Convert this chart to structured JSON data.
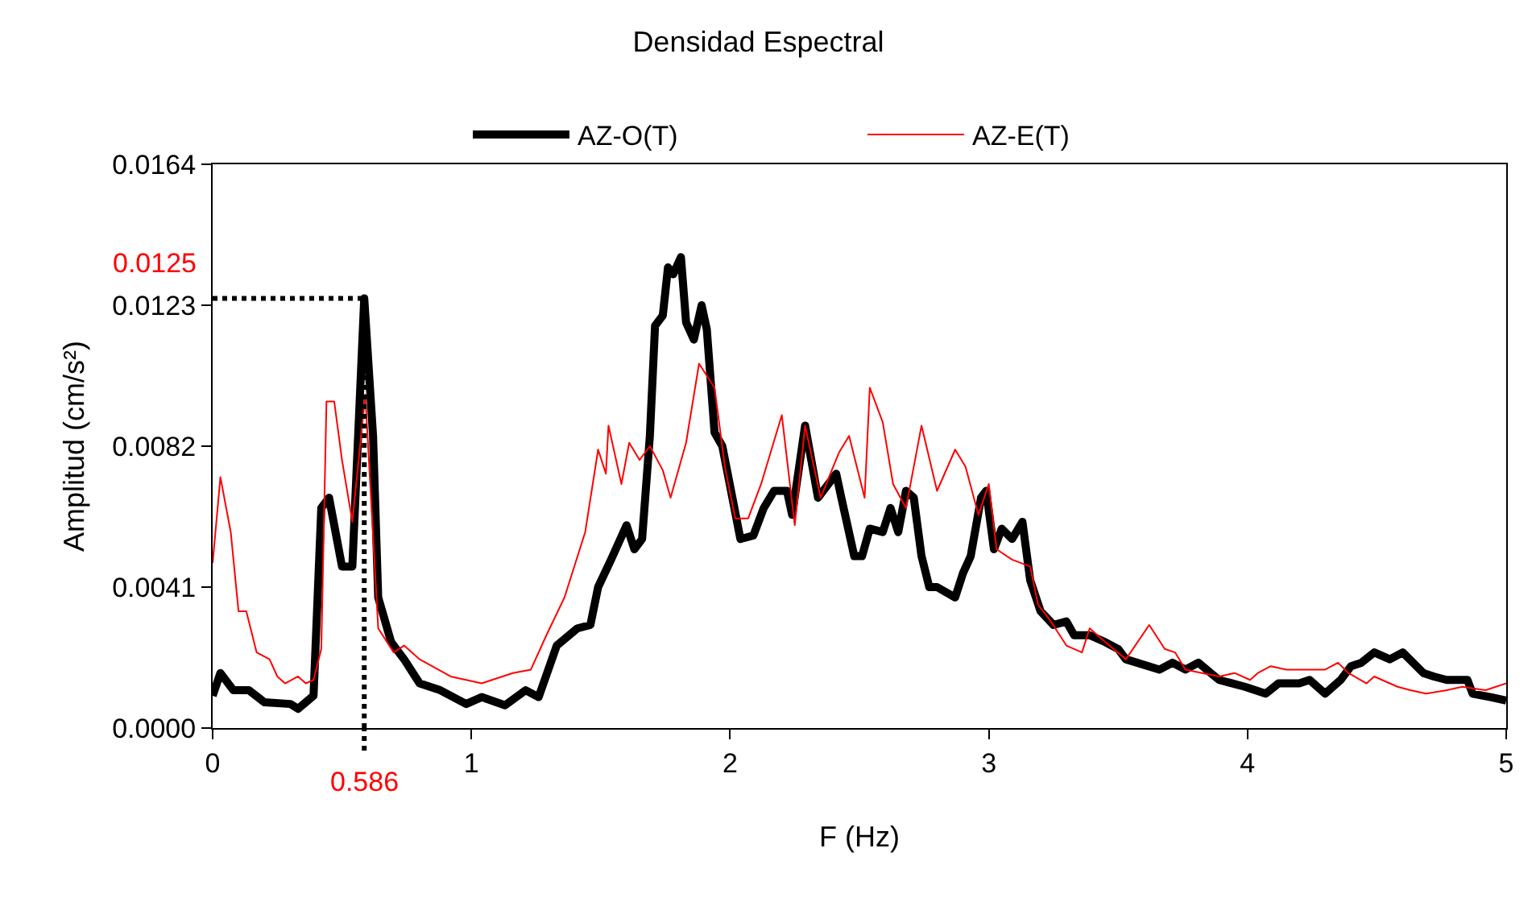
{
  "chart_data": {
    "type": "line",
    "title": "Densidad Espectral",
    "xlabel": "F (Hz)",
    "ylabel": "Amplitud (cm/s²)",
    "xlim": [
      0,
      5
    ],
    "xticks": [
      0,
      1,
      2,
      3,
      4,
      5
    ],
    "ylim": [
      0,
      0.0164
    ],
    "yticks": [
      {
        "value": 0,
        "label": "0.0000"
      },
      0.0041,
      0.0082,
      0.0123,
      0.0164
    ],
    "grid": false,
    "legend": "top",
    "marker": "none",
    "line_style": "solid",
    "ref_lines": [
      {
        "axis": "y",
        "value": 0.0125,
        "label": "0.0125",
        "color": "#000000",
        "line_style": "dotted"
      },
      {
        "axis": "x",
        "value": 0.586,
        "label": "0.586",
        "color": "#000000",
        "line_style": "dotted"
      }
    ],
    "series": [
      {
        "name": "AZ-O(T)",
        "color": "#000000",
        "x": [
          0,
          0.03,
          0.08,
          0.14,
          0.2,
          0.3,
          0.33,
          0.39,
          0.42,
          0.45,
          0.5,
          0.54,
          0.586,
          0.62,
          0.64,
          0.69,
          0.74,
          0.8,
          0.88,
          0.98,
          1.04,
          1.13,
          1.21,
          1.26,
          1.33,
          1.41,
          1.46,
          1.49,
          1.54,
          1.6,
          1.63,
          1.66,
          1.69,
          1.71,
          1.74,
          1.76,
          1.78,
          1.81,
          1.83,
          1.86,
          1.89,
          1.91,
          1.94,
          1.97,
          2.04,
          2.09,
          2.13,
          2.17,
          2.22,
          2.24,
          2.29,
          2.34,
          2.41,
          2.43,
          2.48,
          2.51,
          2.54,
          2.59,
          2.62,
          2.65,
          2.68,
          2.71,
          2.74,
          2.77,
          2.8,
          2.87,
          2.9,
          2.93,
          2.97,
          2.99,
          3.02,
          3.05,
          3.09,
          3.13,
          3.16,
          3.2,
          3.25,
          3.3,
          3.33,
          3.39,
          3.45,
          3.5,
          3.53,
          3.66,
          3.71,
          3.76,
          3.81,
          3.89,
          3.99,
          4.07,
          4.12,
          4.2,
          4.24,
          4.3,
          4.36,
          4.4,
          4.44,
          4.49,
          4.55,
          4.6,
          4.68,
          4.72,
          4.77,
          4.85,
          4.87,
          4.94,
          5.0
        ],
        "values": [
          0.00094,
          0.0016,
          0.0011,
          0.0011,
          0.00075,
          0.0007,
          0.00056,
          0.00094,
          0.0064,
          0.0067,
          0.0047,
          0.0047,
          0.0125,
          0.0085,
          0.0038,
          0.0025,
          0.002,
          0.0013,
          0.0011,
          0.0007,
          0.0009,
          0.00066,
          0.0011,
          0.0009,
          0.0024,
          0.0029,
          0.003,
          0.0041,
          0.0049,
          0.0059,
          0.0052,
          0.0055,
          0.0085,
          0.0117,
          0.012,
          0.0134,
          0.0132,
          0.0137,
          0.0118,
          0.0113,
          0.0123,
          0.0116,
          0.0086,
          0.0082,
          0.0055,
          0.0056,
          0.0064,
          0.0069,
          0.0069,
          0.0062,
          0.0088,
          0.0067,
          0.0074,
          0.0067,
          0.005,
          0.005,
          0.0058,
          0.0057,
          0.0064,
          0.0057,
          0.0069,
          0.0067,
          0.005,
          0.0041,
          0.0041,
          0.0038,
          0.0045,
          0.005,
          0.0067,
          0.0069,
          0.0052,
          0.0058,
          0.0055,
          0.006,
          0.0043,
          0.0034,
          0.003,
          0.0031,
          0.0027,
          0.0027,
          0.0025,
          0.0023,
          0.002,
          0.0017,
          0.0019,
          0.0017,
          0.0019,
          0.0014,
          0.0012,
          0.001,
          0.0013,
          0.0013,
          0.0014,
          0.001,
          0.0014,
          0.0018,
          0.0019,
          0.0022,
          0.002,
          0.0022,
          0.0016,
          0.0015,
          0.0014,
          0.0014,
          0.001,
          0.0009,
          0.0008
        ]
      },
      {
        "name": "AZ-E(T)",
        "color": "#ff0000",
        "x": [
          0,
          0.03,
          0.07,
          0.1,
          0.13,
          0.17,
          0.22,
          0.25,
          0.28,
          0.33,
          0.36,
          0.39,
          0.42,
          0.44,
          0.47,
          0.5,
          0.54,
          0.59,
          0.64,
          0.7,
          0.74,
          0.8,
          0.92,
          1.04,
          1.16,
          1.23,
          1.29,
          1.36,
          1.44,
          1.49,
          1.52,
          1.53,
          1.58,
          1.61,
          1.65,
          1.69,
          1.74,
          1.77,
          1.83,
          1.88,
          1.94,
          1.98,
          2.02,
          2.07,
          2.12,
          2.2,
          2.25,
          2.29,
          2.35,
          2.42,
          2.46,
          2.52,
          2.54,
          2.59,
          2.63,
          2.68,
          2.74,
          2.8,
          2.87,
          2.91,
          2.96,
          3.0,
          3.03,
          3.09,
          3.16,
          3.19,
          3.24,
          3.3,
          3.36,
          3.39,
          3.45,
          3.53,
          3.62,
          3.68,
          3.72,
          3.76,
          3.89,
          3.95,
          4.01,
          4.04,
          4.09,
          4.15,
          4.24,
          4.3,
          4.35,
          4.39,
          4.46,
          4.49,
          4.58,
          4.63,
          4.69,
          4.77,
          4.83,
          4.92,
          5.0
        ],
        "values": [
          0.0048,
          0.0073,
          0.0057,
          0.0034,
          0.0034,
          0.0022,
          0.002,
          0.0015,
          0.0013,
          0.0015,
          0.0013,
          0.0014,
          0.0023,
          0.0095,
          0.0095,
          0.0078,
          0.006,
          0.0097,
          0.0029,
          0.0022,
          0.0024,
          0.002,
          0.0015,
          0.0013,
          0.0016,
          0.0017,
          0.0027,
          0.0038,
          0.0057,
          0.0081,
          0.0074,
          0.0088,
          0.0071,
          0.0083,
          0.0078,
          0.0082,
          0.0075,
          0.0067,
          0.0083,
          0.0106,
          0.0099,
          0.0076,
          0.0061,
          0.0061,
          0.0071,
          0.0091,
          0.0059,
          0.0088,
          0.0067,
          0.008,
          0.0085,
          0.0067,
          0.0099,
          0.0089,
          0.0071,
          0.0064,
          0.0088,
          0.0069,
          0.0081,
          0.0076,
          0.0062,
          0.0071,
          0.0052,
          0.0049,
          0.0047,
          0.0036,
          0.0031,
          0.0024,
          0.0022,
          0.0029,
          0.0025,
          0.002,
          0.003,
          0.0023,
          0.0022,
          0.0017,
          0.0015,
          0.0016,
          0.0014,
          0.0016,
          0.0018,
          0.0017,
          0.0017,
          0.0017,
          0.0019,
          0.0016,
          0.0013,
          0.0015,
          0.0012,
          0.0011,
          0.001,
          0.0011,
          0.0012,
          0.0011,
          0.0013
        ]
      }
    ]
  }
}
